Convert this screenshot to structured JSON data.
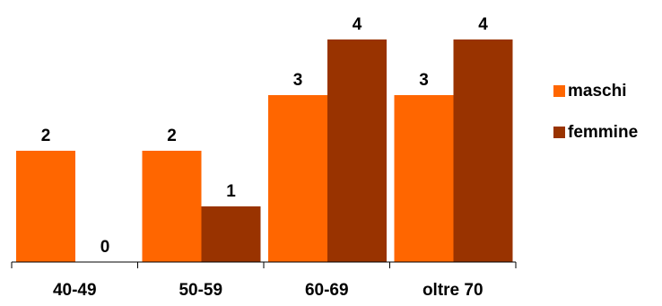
{
  "chart_data": {
    "type": "bar",
    "categories": [
      "40-49",
      "50-59",
      "60-69",
      "oltre 70"
    ],
    "series": [
      {
        "name": "maschi",
        "values": [
          2,
          2,
          3,
          3
        ],
        "color": "#FF6600"
      },
      {
        "name": "femmine",
        "values": [
          0,
          1,
          4,
          4
        ],
        "color": "#993300"
      }
    ],
    "ylim": [
      0,
      4.2
    ],
    "grid": false,
    "legend_position": "right",
    "data_labels": true
  }
}
